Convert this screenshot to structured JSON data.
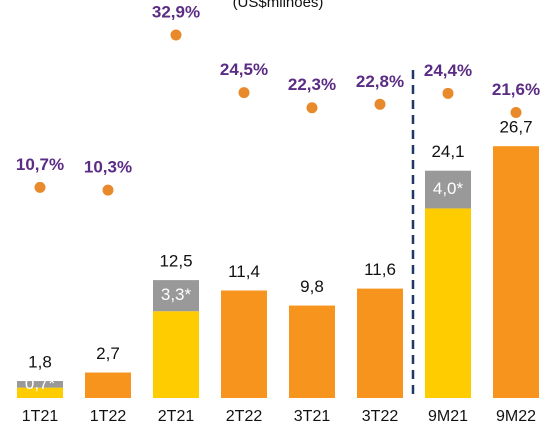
{
  "chart_data": {
    "type": "bar",
    "subtitle": "(US$milhões)",
    "categories": [
      "1T21",
      "1T22",
      "2T21",
      "2T22",
      "3T21",
      "3T22",
      "9M21",
      "9M22"
    ],
    "ylim": [
      0,
      42.2
    ],
    "series": [
      {
        "color": "#ffcc00",
        "values": [
          1.1,
          null,
          9.2,
          null,
          null,
          null,
          20.1,
          null
        ]
      },
      {
        "color": "#999999",
        "values": [
          0.7,
          null,
          3.3,
          null,
          null,
          null,
          4.0,
          null
        ],
        "value_labels": [
          "0,7*",
          null,
          "3,3*",
          null,
          null,
          null,
          "4,0*",
          null
        ]
      },
      {
        "color": "#f7941d",
        "values": [
          null,
          2.7,
          null,
          11.4,
          9.8,
          11.6,
          null,
          26.7
        ]
      },
      {
        "type": "scatter",
        "axis": "y2",
        "color": "#e8892b",
        "values": [
          10.7,
          10.3,
          32.9,
          24.5,
          22.3,
          22.8,
          24.4,
          21.6
        ],
        "value_labels": [
          "10,7%",
          "10,3%",
          "32,9%",
          "24,5%",
          "22,3%",
          "22,8%",
          "24,4%",
          "21,6%"
        ]
      }
    ],
    "totals": {
      "values": [
        1.8,
        2.7,
        12.5,
        11.4,
        9.8,
        11.6,
        24.1,
        26.7
      ],
      "value_labels": [
        "1,8",
        "2,7",
        "12,5",
        "11,4",
        "9,8",
        "11,6",
        "24,1",
        "26,7"
      ]
    },
    "y2lim": [
      -20,
      38
    ]
  }
}
